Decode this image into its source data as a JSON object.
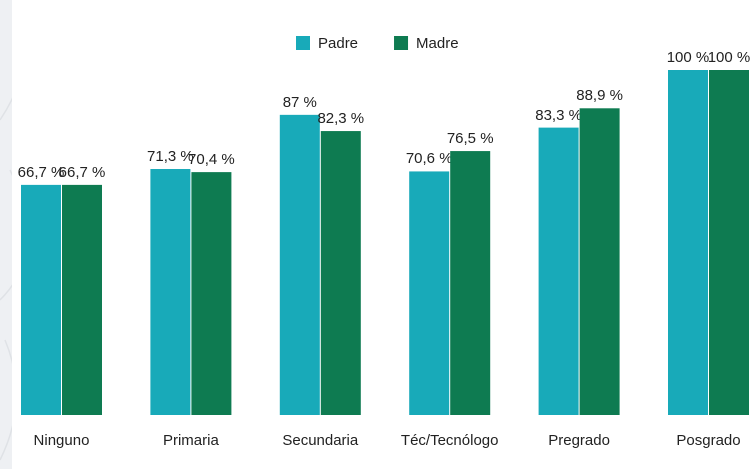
{
  "chart_data": {
    "type": "bar",
    "categories": [
      "Ninguno",
      "Primaria",
      "Secundaria",
      "Téc/Tecnólogo",
      "Pregrado",
      "Posgrado"
    ],
    "series": [
      {
        "name": "Padre",
        "color": "#18aab9",
        "values": [
          66.7,
          71.3,
          87,
          70.6,
          83.3,
          100
        ],
        "value_labels": [
          "66,7 %",
          "71,3 %",
          "87 %",
          "70,6 %",
          "83,3 %",
          "100 %"
        ]
      },
      {
        "name": "Madre",
        "color": "#0e7b51",
        "values": [
          66.7,
          70.4,
          82.3,
          76.5,
          88.9,
          100
        ],
        "value_labels": [
          "66,7 %",
          "70,4 %",
          "82,3 %",
          "76,5 %",
          "88,9 %",
          "100 %"
        ]
      }
    ],
    "ylim": [
      0,
      100
    ],
    "legend": "top"
  }
}
